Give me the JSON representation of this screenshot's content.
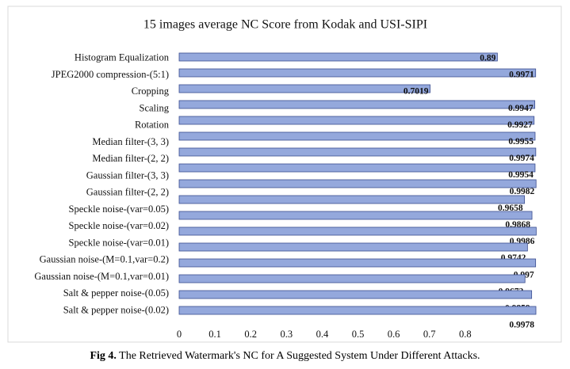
{
  "chart_data": {
    "type": "hbar",
    "title": "15 images average NC Score from Kodak and USI-SIPI",
    "categories": [
      "Histogram Equalization",
      "JPEG2000 compression-(5:1)",
      "Cropping",
      "Scaling",
      "Rotation",
      "Median filter-(3, 3)",
      "Median filter-(2, 2)",
      "Gaussian filter-(3, 3)",
      "Gaussian filter-(2, 2)",
      "Speckle noise-(var=0.05)",
      "Speckle noise-(var=0.02)",
      "Speckle noise-(var=0.01)",
      "Gaussian noise-(M=0.1,var=0.2)",
      "Gaussian noise-(M=0.1,var=0.01)",
      "Salt & pepper noise-(0.05)",
      "Salt & pepper noise-(0.02)",
      null
    ],
    "values": [
      0.89,
      0.9971,
      0.7019,
      0.9947,
      0.9927,
      0.9955,
      0.9974,
      0.9954,
      0.9982,
      0.9658,
      0.9868,
      0.9986,
      0.9742,
      0.997,
      0.9672,
      0.9859,
      0.9978
    ],
    "color": "#94a8dc",
    "xlim": [
      0,
      1
    ],
    "xticks": [
      0,
      0.1,
      0.2,
      0.3,
      0.4,
      0.5,
      0.6,
      0.7,
      0.8
    ],
    "grid": false
  },
  "caption": {
    "label": "Fig 4.",
    "text": "The Retrieved Watermark's NC for A Suggested System Under Different Attacks."
  }
}
